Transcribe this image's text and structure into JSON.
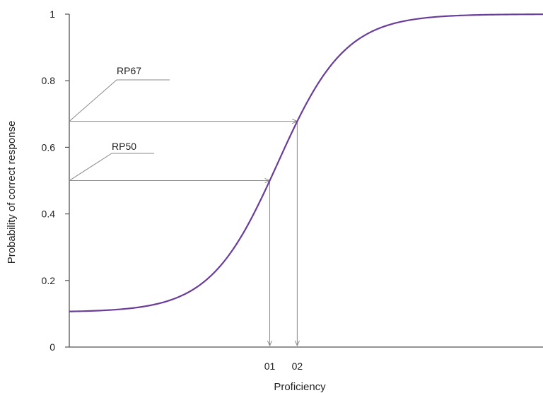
{
  "chart_data": {
    "type": "line",
    "title": "",
    "xlabel": "Proficiency",
    "ylabel": "Probability of correct response",
    "ylim": [
      0,
      1
    ],
    "xlim": [
      -4,
      4
    ],
    "y_ticks": [
      "0",
      "0.2",
      "0.4",
      "0.6",
      "0.8",
      "1"
    ],
    "y_tick_values": [
      0,
      0.2,
      0.4,
      0.6,
      0.8,
      1
    ],
    "grid": false,
    "legend": "none",
    "series": [
      {
        "color": "#6a3d9a",
        "model": {
          "guessing": 0.105,
          "discrimination": 1.75,
          "difficulty": -0.48
        },
        "x": [
          -4,
          -3.5,
          -3,
          -2.5,
          -2,
          -1.5,
          -1,
          -0.5,
          0,
          0.5,
          1,
          1.5,
          2,
          2.5,
          3,
          3.5,
          4
        ],
        "y": [
          0.105,
          0.106,
          0.109,
          0.117,
          0.14,
          0.204,
          0.36,
          0.614,
          0.817,
          0.924,
          0.971,
          0.989,
          0.996,
          0.998,
          0.999,
          1.0,
          1.0
        ]
      }
    ],
    "annotations": [
      {
        "label": "RP67",
        "y": 0.678,
        "x_tick": "02"
      },
      {
        "label": "RP50",
        "y": 0.5,
        "x_tick": "01"
      }
    ],
    "x_ticks": [
      "01",
      "02"
    ]
  },
  "colors": {
    "curve": "#6a3d9a",
    "axis": "#555555",
    "arrow": "#888888"
  }
}
